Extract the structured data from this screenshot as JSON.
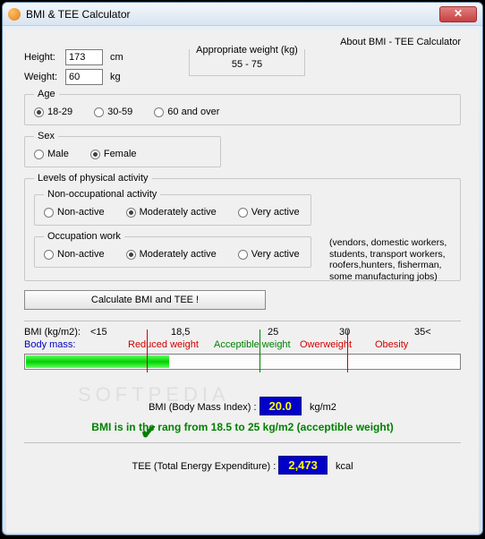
{
  "window": {
    "title": "BMI & TEE Calculator"
  },
  "about_link": "About BMI - TEE Calculator",
  "inputs": {
    "height_label": "Height:",
    "height_value": "173",
    "height_unit": "cm",
    "weight_label": "Weight:",
    "weight_value": "60",
    "weight_unit": "kg",
    "appropriate_weight_caption": "Appropriate weight (kg)",
    "appropriate_weight_value": "55 - 75"
  },
  "age": {
    "legend": "Age",
    "options": [
      "18-29",
      "30-59",
      "60 and over"
    ],
    "selected": 0
  },
  "sex": {
    "legend": "Sex",
    "options": [
      "Male",
      "Female"
    ],
    "selected": 1
  },
  "activity": {
    "legend": "Levels of physical activity",
    "non_occ": {
      "legend": "Non-occupational activity",
      "options": [
        "Non-active",
        "Moderately active",
        "Very active"
      ],
      "selected": 1
    },
    "occ": {
      "legend": "Occupation work",
      "options": [
        "Non-active",
        "Moderately active",
        "Very active"
      ],
      "selected": 1
    },
    "note": "(vendors, domestic workers, students, transport workers, roofers,hunters, fisherman, some manufacturing jobs)"
  },
  "calc_button": "Calculate BMI and TEE !",
  "scale": {
    "unit_label": "BMI (kg/m2):",
    "ticks": [
      {
        "label": "<15",
        "pos_pct": 3.5
      },
      {
        "label": "18,5",
        "pos_pct": 26
      },
      {
        "label": "25",
        "pos_pct": 53
      },
      {
        "label": "30",
        "pos_pct": 73
      },
      {
        "label": "35<",
        "pos_pct": 94
      }
    ],
    "body_mass_label": "Body mass:",
    "categories": [
      {
        "label": "Reduced weight",
        "color": "#d00000",
        "pos_pct": 14
      },
      {
        "label": "Acceptible weight",
        "color": "#008000",
        "pos_pct": 38
      },
      {
        "label": "Owerweight",
        "color": "#d00000",
        "pos_pct": 62
      },
      {
        "label": "Obesity",
        "color": "#d00000",
        "pos_pct": 83
      }
    ],
    "vlines": [
      {
        "pos_pct": 28,
        "color": "#d00000"
      },
      {
        "pos_pct": 54,
        "color": "#008000"
      },
      {
        "pos_pct": 74,
        "color": "#d00000"
      }
    ],
    "fill_pct": 33,
    "fill_colors": [
      "#60ff60",
      "#00d000"
    ]
  },
  "bmi_result": {
    "label": "BMI (Body Mass Index) :",
    "value": "20.0",
    "unit": "kg/m2",
    "status": "BMI is in the rang from 18.5 to 25 kg/m2 (acceptible weight)",
    "status_color": "#008000"
  },
  "tee_result": {
    "label": "TEE (Total Energy Expenditure) :",
    "value": "2,473",
    "unit": "kcal"
  },
  "watermark": "SOFTPEDIA"
}
